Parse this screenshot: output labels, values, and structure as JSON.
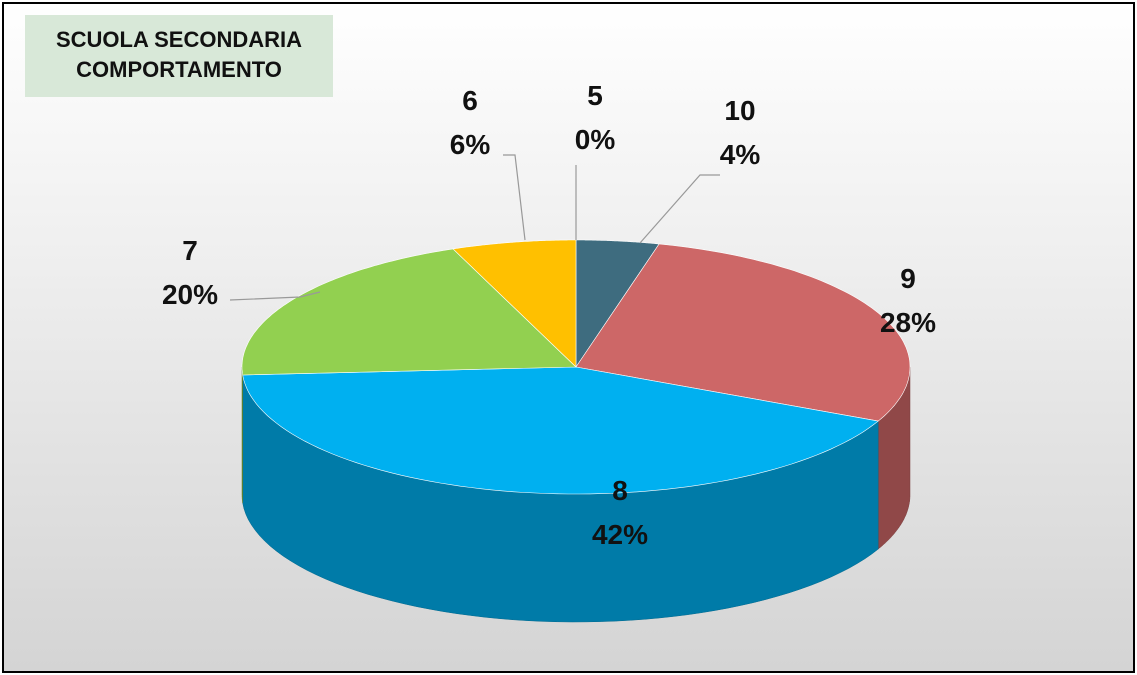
{
  "chart_data": {
    "type": "pie",
    "title": "SCUOLA SECONDARIA COMPORTAMENTO",
    "categories": [
      "10",
      "9",
      "8",
      "7",
      "6",
      "5"
    ],
    "values": [
      4,
      28,
      42,
      20,
      6,
      0
    ],
    "value_labels": [
      "4%",
      "28%",
      "42%",
      "20%",
      "6%",
      "0%"
    ],
    "colors": [
      "#3e6c7f",
      "#cd6767",
      "#00b0f0",
      "#92d050",
      "#ffc000",
      "#4f81bd"
    ]
  }
}
